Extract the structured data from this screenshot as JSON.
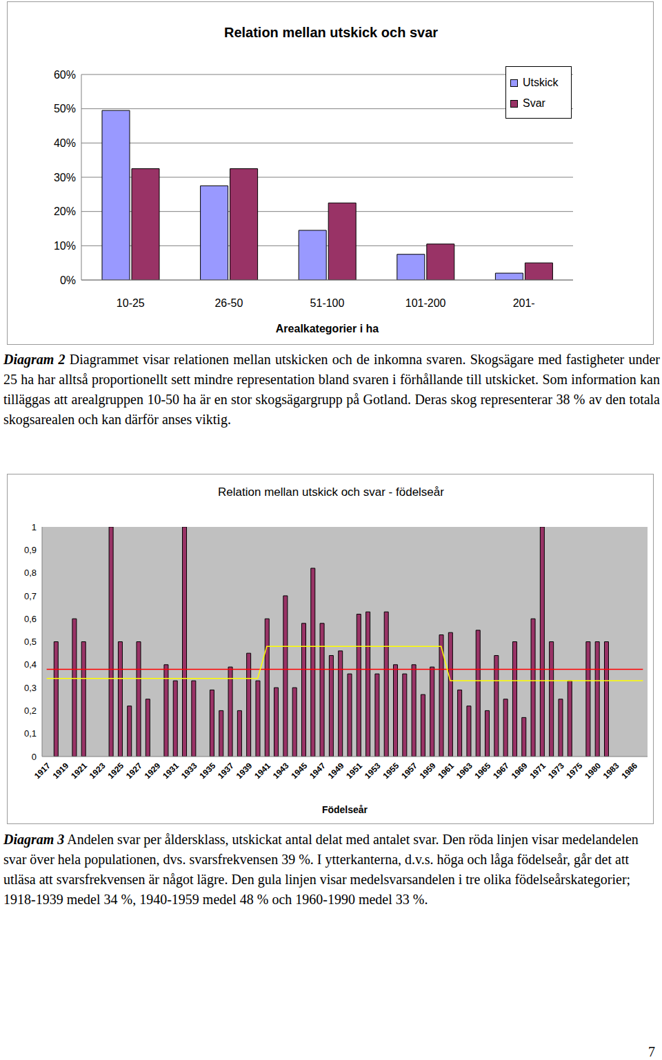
{
  "chart_data": [
    {
      "type": "bar",
      "title": "Relation mellan utskick och svar",
      "x_label": "Arealkategorier i ha",
      "categories": [
        "10-25",
        "26-50",
        "51-100",
        "101-200",
        "201-"
      ],
      "series": [
        {
          "name": "Utskick",
          "color": "#9999ff",
          "values": [
            49.5,
            27.5,
            14.5,
            7.5,
            2
          ]
        },
        {
          "name": "Svar",
          "color": "#993366",
          "values": [
            32.5,
            32.5,
            22.5,
            10.5,
            5
          ]
        }
      ],
      "ylim": [
        0,
        60
      ],
      "yticks": [
        {
          "value": 0,
          "label": "0%"
        },
        {
          "value": 10,
          "label": "10%"
        },
        {
          "value": 20,
          "label": "20%"
        },
        {
          "value": 30,
          "label": "30%"
        },
        {
          "value": 40,
          "label": "40%"
        },
        {
          "value": 50,
          "label": "50%"
        },
        {
          "value": 60,
          "label": "60%"
        }
      ],
      "grid": true,
      "legend": "top-right"
    },
    {
      "type": "bar",
      "title": "Relation mellan utskick och svar - födelseår",
      "x_label": "Födelseår",
      "categories": [
        "1917",
        null,
        "1919",
        null,
        "1921",
        null,
        "1923",
        null,
        "1925",
        null,
        "1927",
        null,
        "1929",
        null,
        "1931",
        null,
        "1933",
        null,
        "1935",
        null,
        "1937",
        null,
        "1939",
        null,
        "1941",
        null,
        "1943",
        null,
        "1945",
        null,
        "1947",
        null,
        "1949",
        null,
        "1951",
        null,
        "1953",
        null,
        "1955",
        null,
        "1957",
        null,
        "1959",
        null,
        "1961",
        null,
        "1963",
        null,
        "1965",
        null,
        "1967",
        null,
        "1969",
        null,
        "1971",
        null,
        "1973",
        null,
        "1975",
        null,
        "1980",
        null,
        "1983",
        null,
        "1986",
        null
      ],
      "series": [
        {
          "type": "bar",
          "color": "#993366",
          "values": [
            null,
            0.5,
            null,
            0.6,
            0.5,
            null,
            null,
            1,
            0.5,
            0.22,
            0.5,
            0.25,
            null,
            0.4,
            0.33,
            1,
            0.33,
            null,
            0.29,
            0.2,
            0.39,
            0.2,
            0.45,
            0.33,
            0.6,
            0.3,
            0.7,
            0.3,
            0.58,
            0.82,
            0.58,
            0.44,
            0.46,
            0.36,
            0.62,
            0.63,
            0.36,
            0.63,
            0.4,
            0.36,
            0.4,
            0.27,
            0.39,
            0.53,
            0.54,
            0.29,
            0.22,
            0.55,
            0.2,
            0.44,
            0.25,
            0.5,
            0.17,
            0.6,
            1,
            0.5,
            0.25,
            0.33,
            null,
            0.5,
            0.5,
            0.5,
            null,
            null,
            null,
            null
          ]
        },
        {
          "type": "line",
          "color": "#ff0000",
          "values": [
            0.38,
            0.38,
            0.38,
            0.38,
            0.38,
            0.38,
            0.38,
            0.38,
            0.38,
            0.38,
            0.38,
            0.38,
            0.38,
            0.38,
            0.38,
            0.38,
            0.38,
            0.38,
            0.38,
            0.38,
            0.38,
            0.38,
            0.38,
            0.38,
            0.38,
            0.38,
            0.38,
            0.38,
            0.38,
            0.38,
            0.38,
            0.38,
            0.38,
            0.38,
            0.38,
            0.38,
            0.38,
            0.38,
            0.38,
            0.38,
            0.38,
            0.38,
            0.38,
            0.38,
            0.38,
            0.38,
            0.38,
            0.38,
            0.38,
            0.38,
            0.38,
            0.38,
            0.38,
            0.38,
            0.38,
            0.38,
            0.38,
            0.38,
            0.38,
            0.38,
            0.38,
            0.38,
            0.38,
            0.38,
            0.38,
            0.38
          ]
        },
        {
          "type": "line",
          "color": "#ffff00",
          "values": [
            0.34,
            0.34,
            0.34,
            0.34,
            0.34,
            0.34,
            0.34,
            0.34,
            0.34,
            0.34,
            0.34,
            0.34,
            0.34,
            0.34,
            0.34,
            0.34,
            0.34,
            0.34,
            0.34,
            0.34,
            0.34,
            0.34,
            0.34,
            0.34,
            0.48,
            0.48,
            0.48,
            0.48,
            0.48,
            0.48,
            0.48,
            0.48,
            0.48,
            0.48,
            0.48,
            0.48,
            0.48,
            0.48,
            0.48,
            0.48,
            0.48,
            0.48,
            0.48,
            0.48,
            0.33,
            0.33,
            0.33,
            0.33,
            0.33,
            0.33,
            0.33,
            0.33,
            0.33,
            0.33,
            0.33,
            0.33,
            0.33,
            0.33,
            0.33,
            0.33,
            0.33,
            0.33,
            0.33,
            0.33,
            0.33,
            0.33
          ]
        }
      ],
      "ylim": [
        0,
        1
      ],
      "yticks": [
        0,
        {
          "value": 0.1,
          "label": "0,1"
        },
        {
          "value": 0.2,
          "label": "0,2"
        },
        {
          "value": 0.3,
          "label": "0,3"
        },
        {
          "value": 0.4,
          "label": "0,4"
        },
        {
          "value": 0.5,
          "label": "0,5"
        },
        {
          "value": 0.6,
          "label": "0,6"
        },
        {
          "value": 0.7,
          "label": "0,7"
        },
        {
          "value": 0.8,
          "label": "0,8"
        },
        {
          "value": 0.9,
          "label": "0,9"
        },
        1
      ],
      "grid": false
    }
  ],
  "captions": [
    {
      "label": "Diagram 2",
      "text": "Diagrammet visar relationen mellan utskicken och de inkomna svaren. Skogsägare med fastigheter under 25 ha har alltså proportionellt sett mindre representation bland svaren i förhållande till utskicket. Som information kan tilläggas att arealgruppen 10-50 ha är en stor skogsägargrupp på Gotland. Deras skog representerar 38 % av den totala skogsarealen och kan därför anses viktig."
    },
    {
      "label": "Diagram 3",
      "text": "Andelen svar per åldersklass, utskickat antal delat med antalet svar. Den röda linjen visar medelandelen svar över hela populationen, dvs. svarsfrekvensen 39 %. I ytterkanterna, d.v.s. höga och låga födelseår, går det att utläsa att svarsfrekvensen är något lägre. Den gula linjen visar medelsvarsandelen i tre olika födelseårskategorier; 1918-1939 medel 34 %, 1940-1959 medel 48 % och 1960-1990 medel 33 %."
    }
  ],
  "page_number": 7
}
